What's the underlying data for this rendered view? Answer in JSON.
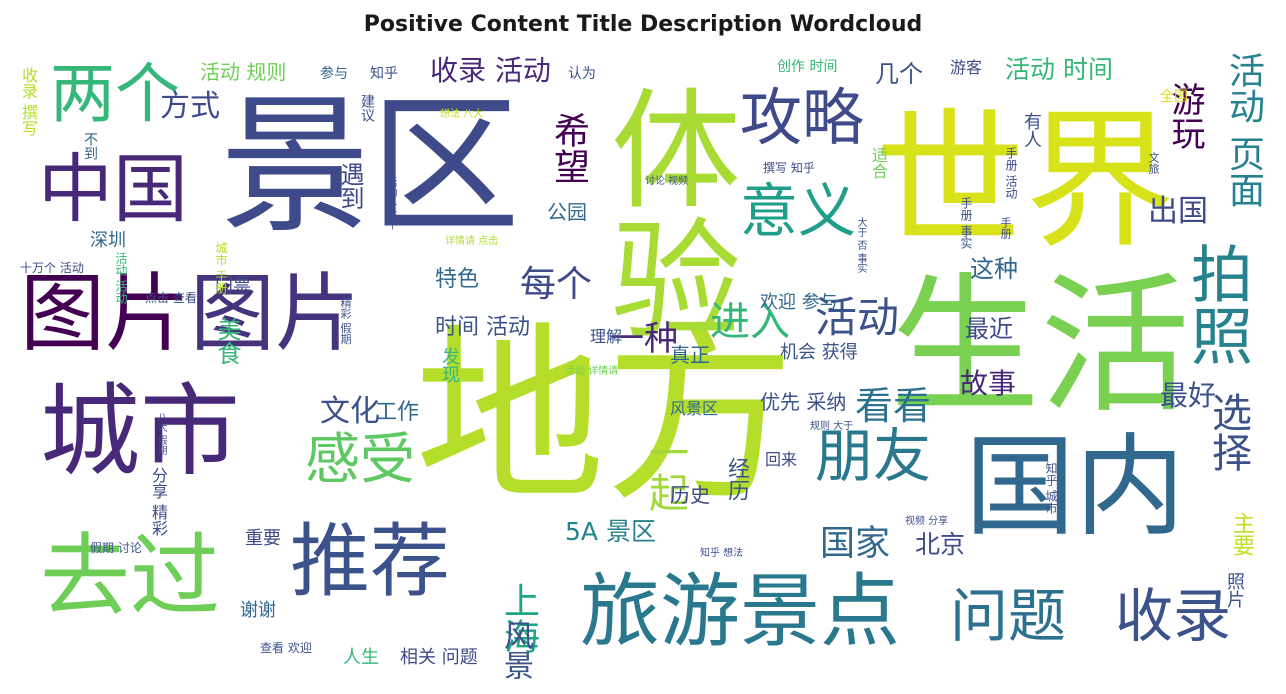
{
  "chart_data": {
    "type": "wordcloud",
    "title": "Positive Content Title Description Wordcloud",
    "palette": [
      "#440154",
      "#482878",
      "#3e4a89",
      "#31688e",
      "#26828e",
      "#1f9e89",
      "#35b779",
      "#6ece58",
      "#b5de2b",
      "#fde725"
    ],
    "words": [
      {
        "text": "地方",
        "weight": 1.0,
        "color": "#b5de2b"
      },
      {
        "text": "生活",
        "weight": 0.96,
        "color": "#7ad151"
      },
      {
        "text": "世界",
        "weight": 0.94,
        "color": "#d8e219"
      },
      {
        "text": "景区",
        "weight": 0.92,
        "color": "#3e4a89"
      },
      {
        "text": "体验",
        "weight": 0.86,
        "color": "#a8db34"
      },
      {
        "text": "国内",
        "weight": 0.72,
        "color": "#31688e"
      },
      {
        "text": "城市",
        "weight": 0.66,
        "color": "#482878"
      },
      {
        "text": "旅游景点",
        "weight": 0.6,
        "color": "#2a788e"
      },
      {
        "text": "推荐",
        "weight": 0.58,
        "color": "#3b528b"
      },
      {
        "text": "图片",
        "weight": 0.56,
        "color": "#440154"
      },
      {
        "text": "图片",
        "weight": 0.56,
        "color": "#46337e"
      },
      {
        "text": "去过",
        "weight": 0.6,
        "color": "#6ece58"
      },
      {
        "text": "中国",
        "weight": 0.52,
        "color": "#482878"
      },
      {
        "text": "两个",
        "weight": 0.48,
        "color": "#35b779"
      },
      {
        "text": "问题",
        "weight": 0.44,
        "color": "#2c728e"
      },
      {
        "text": "收录",
        "weight": 0.44,
        "color": "#3b528b"
      },
      {
        "text": "攻略",
        "weight": 0.42,
        "color": "#3e4a89"
      },
      {
        "text": "拍照",
        "weight": 0.44,
        "color": "#26828e"
      },
      {
        "text": "朋友",
        "weight": 0.38,
        "color": "#2a788e"
      },
      {
        "text": "感受",
        "weight": 0.38,
        "color": "#5ec962"
      },
      {
        "text": "意义",
        "weight": 0.36,
        "color": "#1f9e89"
      },
      {
        "text": "活动",
        "weight": 0.32,
        "color": "#3b528b"
      },
      {
        "text": "进入",
        "weight": 0.3,
        "color": "#35b779"
      },
      {
        "text": "一起",
        "weight": 0.3,
        "color": "#a0da39"
      },
      {
        "text": "选择",
        "weight": 0.3,
        "color": "#3b528b"
      },
      {
        "text": "国家",
        "weight": 0.28,
        "color": "#31688e"
      },
      {
        "text": "看看",
        "weight": 0.28,
        "color": "#2c728e"
      },
      {
        "text": "上海",
        "weight": 0.24,
        "color": "#20a486"
      },
      {
        "text": "每个",
        "weight": 0.24,
        "color": "#3e4a89"
      },
      {
        "text": "希望",
        "weight": 0.24,
        "color": "#440154"
      },
      {
        "text": "活动 页面",
        "weight": 0.26,
        "color": "#26828e"
      },
      {
        "text": "游玩",
        "weight": 0.22,
        "color": "#440154"
      },
      {
        "text": "一种",
        "weight": 0.22,
        "color": "#482878"
      },
      {
        "text": "方式",
        "weight": 0.2,
        "color": "#3e4a89"
      },
      {
        "text": "文化",
        "weight": 0.22,
        "color": "#3b528b"
      },
      {
        "text": "5A 景区",
        "weight": 0.2,
        "color": "#26828e"
      },
      {
        "text": "风景",
        "weight": 0.2,
        "color": "#3b528b"
      },
      {
        "text": "出国",
        "weight": 0.2,
        "color": "#3e4a89"
      },
      {
        "text": "最好",
        "weight": 0.2,
        "color": "#3b528b"
      },
      {
        "text": "故事",
        "weight": 0.2,
        "color": "#482878"
      },
      {
        "text": "收录 活动",
        "weight": 0.18,
        "color": "#482878"
      },
      {
        "text": "活动 时间",
        "weight": 0.16,
        "color": "#35b779"
      },
      {
        "text": "北京",
        "weight": 0.16,
        "color": "#3e4a89"
      },
      {
        "text": "时间 活动",
        "weight": 0.16,
        "color": "#3b528b"
      },
      {
        "text": "特色",
        "weight": 0.16,
        "color": "#31688e"
      },
      {
        "text": "主要",
        "weight": 0.14,
        "color": "#c2df23"
      },
      {
        "text": "遇到",
        "weight": 0.16,
        "color": "#3e4a89"
      },
      {
        "text": "工作",
        "weight": 0.16,
        "color": "#31688e"
      },
      {
        "text": "美食",
        "weight": 0.14,
        "color": "#35b779"
      },
      {
        "text": "几个",
        "weight": 0.14,
        "color": "#3b528b"
      },
      {
        "text": "这种",
        "weight": 0.14,
        "color": "#31688e"
      },
      {
        "text": "最近",
        "weight": 0.14,
        "color": "#3e4a89"
      },
      {
        "text": "活动 规则",
        "weight": 0.14,
        "color": "#6ece58"
      },
      {
        "text": "真正",
        "weight": 0.12,
        "color": "#31688e"
      },
      {
        "text": "公园",
        "weight": 0.12,
        "color": "#31688e"
      },
      {
        "text": "优先 采纳",
        "weight": 0.12,
        "color": "#3b528b"
      },
      {
        "text": "经历",
        "weight": 0.12,
        "color": "#3b528b"
      },
      {
        "text": "历史",
        "weight": 0.12,
        "color": "#3e4a89"
      },
      {
        "text": "欢迎 参与",
        "weight": 0.12,
        "color": "#31688e"
      },
      {
        "text": "机会 获得",
        "weight": 0.12,
        "color": "#3b528b"
      },
      {
        "text": "深圳",
        "weight": 0.1,
        "color": "#31688e"
      },
      {
        "text": "门票",
        "weight": 0.1,
        "color": "#3e4a89"
      },
      {
        "text": "谢谢",
        "weight": 0.1,
        "color": "#31688e"
      },
      {
        "text": "重要",
        "weight": 0.1,
        "color": "#3e4a89"
      },
      {
        "text": "人生",
        "weight": 0.1,
        "color": "#35b779"
      },
      {
        "text": "相关 问题",
        "weight": 0.1,
        "color": "#3e4a89"
      },
      {
        "text": "理解",
        "weight": 0.1,
        "color": "#3b528b"
      },
      {
        "text": "发现",
        "weight": 0.1,
        "color": "#35b779"
      },
      {
        "text": "风景区",
        "weight": 0.1,
        "color": "#31688e"
      },
      {
        "text": "回来",
        "weight": 0.1,
        "color": "#3e4a89"
      },
      {
        "text": "照片",
        "weight": 0.1,
        "color": "#3b528b"
      },
      {
        "text": "有人",
        "weight": 0.1,
        "color": "#3b528b"
      },
      {
        "text": "游客",
        "weight": 0.1,
        "color": "#3e4a89"
      },
      {
        "text": "参与",
        "weight": 0.08,
        "color": "#31688e"
      },
      {
        "text": "知乎",
        "weight": 0.08,
        "color": "#3b528b"
      },
      {
        "text": "认为",
        "weight": 0.08,
        "color": "#3b528b"
      },
      {
        "text": "创作 时间",
        "weight": 0.08,
        "color": "#35b779"
      },
      {
        "text": "全国",
        "weight": 0.08,
        "color": "#d8e219"
      },
      {
        "text": "建议",
        "weight": 0.08,
        "color": "#3b528b"
      },
      {
        "text": "不到",
        "weight": 0.08,
        "color": "#31688e"
      },
      {
        "text": "收录 撰写",
        "weight": 0.08,
        "color": "#b5de2b"
      },
      {
        "text": "分享 精彩",
        "weight": 0.08,
        "color": "#3e4a89"
      },
      {
        "text": "适合",
        "weight": 0.08,
        "color": "#6ece58"
      },
      {
        "text": "撰写 知乎",
        "weight": 0.06,
        "color": "#3e4a89"
      },
      {
        "text": "手册 活动",
        "weight": 0.06,
        "color": "#3e4a89"
      },
      {
        "text": "城市 手册",
        "weight": 0.06,
        "color": "#b5de2b"
      },
      {
        "text": "假期 讨论",
        "weight": 0.06,
        "color": "#3b528b"
      },
      {
        "text": "十万个 活动",
        "weight": 0.05,
        "color": "#3e4a89"
      },
      {
        "text": "点击 查看",
        "weight": 0.05,
        "color": "#3e4a89"
      },
      {
        "text": "查看 欢迎",
        "weight": 0.05,
        "color": "#3b528b"
      },
      {
        "text": "知乎 城市",
        "weight": 0.05,
        "color": "#3b528b"
      },
      {
        "text": "视频 分享",
        "weight": 0.05,
        "color": "#3b528b"
      },
      {
        "text": "讨论 视频",
        "weight": 0.05,
        "color": "#3b528b"
      },
      {
        "text": "活动 详情请",
        "weight": 0.05,
        "color": "#6ece58"
      },
      {
        "text": "详情请 点击",
        "weight": 0.05,
        "color": "#b5de2b"
      },
      {
        "text": "规则 大于",
        "weight": 0.05,
        "color": "#3b528b"
      },
      {
        "text": "手册 事实",
        "weight": 0.05,
        "color": "#3b528b"
      },
      {
        "text": "手册",
        "weight": 0.05,
        "color": "#3e4a89"
      },
      {
        "text": "文旅",
        "weight": 0.05,
        "color": "#3b528b"
      },
      {
        "text": "知乎 想法",
        "weight": 0.05,
        "color": "#3b528b"
      },
      {
        "text": "活动 十万个",
        "weight": 0.05,
        "color": "#3b528b"
      },
      {
        "text": "想法 八大",
        "weight": 0.05,
        "color": "#c2df23"
      },
      {
        "text": "八大 假期",
        "weight": 0.05,
        "color": "#3e4a89"
      },
      {
        "text": "活动 活动",
        "weight": 0.05,
        "color": "#35b779"
      },
      {
        "text": "精彩 假期",
        "weight": 0.05,
        "color": "#3b528b"
      },
      {
        "text": "大于 否 事实",
        "weight": 0.05,
        "color": "#3b528b"
      }
    ]
  }
}
